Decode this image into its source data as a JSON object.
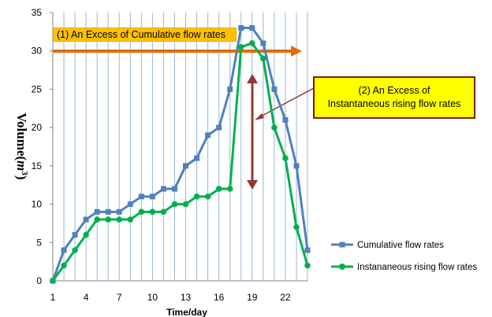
{
  "chart_data": {
    "type": "line",
    "title": "",
    "xlabel": "Time/day",
    "ylabel": "Volume(m³)",
    "ylabel_base": "Volume(",
    "ylabel_unit": "m",
    "ylabel_exp": "3",
    "ylabel_close": ")",
    "x": [
      1,
      2,
      3,
      4,
      5,
      6,
      7,
      8,
      9,
      10,
      11,
      12,
      13,
      14,
      15,
      16,
      17,
      18,
      19,
      20,
      21,
      22,
      23,
      24
    ],
    "x_ticks": [
      "1",
      "4",
      "7",
      "10",
      "13",
      "16",
      "19",
      "22"
    ],
    "xlim": [
      1,
      24
    ],
    "ylim": [
      0,
      35
    ],
    "y_ticks": [
      "0",
      "5",
      "10",
      "15",
      "20",
      "25",
      "30",
      "35"
    ],
    "grid": {
      "vertical": true,
      "horizontal": false
    },
    "legend_position": "bottom-right",
    "series": [
      {
        "name": "Cumulative flow rates",
        "color": "#4f81bd",
        "marker": "square",
        "values": [
          0,
          4,
          6,
          8,
          9,
          9,
          9,
          10,
          11,
          11,
          12,
          12,
          15,
          16,
          19,
          20,
          25,
          33,
          33,
          31,
          25,
          21,
          15,
          4
        ]
      },
      {
        "name": "Instananeous rising flow rates",
        "color": "#00b050",
        "marker": "circle",
        "values": [
          0,
          2,
          4,
          6,
          8,
          8,
          8,
          8,
          9,
          9,
          9,
          10,
          10,
          11,
          11,
          12,
          12,
          30.5,
          31,
          29,
          20,
          16,
          7,
          2
        ]
      }
    ],
    "annotations": [
      {
        "text": "(1) An Excess of Cumulative flow rates",
        "box_color": "#ffc000",
        "arrow_color": "#e46c0a",
        "value": 30
      },
      {
        "line1": "(2) An Excess of",
        "line2": "Instantaneous rising flow rates",
        "box_color": "#ffff00",
        "arrow_color": "#953735",
        "range": [
          12,
          27
        ]
      }
    ]
  }
}
